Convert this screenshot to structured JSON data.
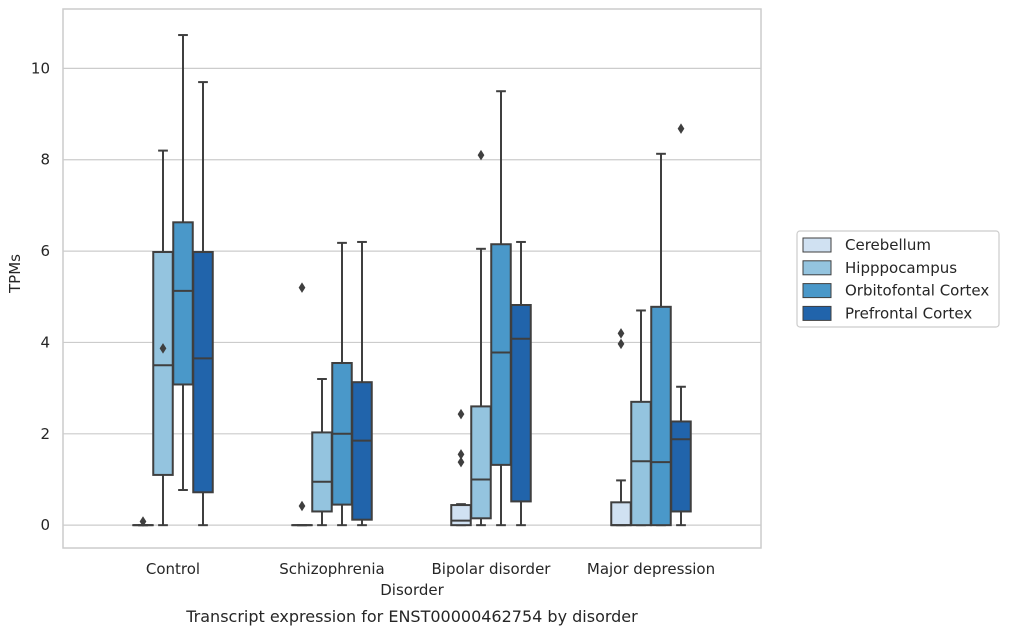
{
  "chart_data": {
    "type": "box",
    "caption": "Transcript expression for ENST00000462754 by disorder",
    "xlabel": "Disorder",
    "ylabel": "TPMs",
    "ylim": [
      -0.5,
      11.3
    ],
    "yticks": [
      0,
      2,
      4,
      6,
      8,
      10
    ],
    "grid": "horizontal",
    "legend_position": "right",
    "categories": [
      "Control",
      "Schizophrenia",
      "Bipolar disorder",
      "Major depression"
    ],
    "series": [
      {
        "name": "Cerebellum",
        "color": "#d0e1f2",
        "boxes": [
          {
            "whislo": 0,
            "q1": 0,
            "med": 0,
            "q3": 0,
            "whishi": 0,
            "fliers": [
              0.08
            ]
          },
          {
            "whislo": 0,
            "q1": 0,
            "med": 0,
            "q3": 0,
            "whishi": 0,
            "fliers": [
              0.42,
              5.2
            ]
          },
          {
            "whislo": 0,
            "q1": 0,
            "med": 0.1,
            "q3": 0.44,
            "whishi": 0.46,
            "fliers": [
              1.38,
              1.55,
              2.43
            ]
          },
          {
            "whislo": 0,
            "q1": 0,
            "med": 0,
            "q3": 0.5,
            "whishi": 0.98,
            "fliers": [
              3.97,
              4.2
            ]
          }
        ]
      },
      {
        "name": "Hipppocampus",
        "color": "#94c4df",
        "boxes": [
          {
            "whislo": 0,
            "q1": 1.1,
            "med": 3.5,
            "q3": 5.98,
            "whishi": 8.2,
            "fliers": [
              3.87
            ]
          },
          {
            "whislo": 0,
            "q1": 0.3,
            "med": 0.95,
            "q3": 2.03,
            "whishi": 3.2,
            "fliers": []
          },
          {
            "whislo": 0,
            "q1": 0.15,
            "med": 1.0,
            "q3": 2.6,
            "whishi": 6.05,
            "fliers": [
              8.1
            ]
          },
          {
            "whislo": 0,
            "q1": 0,
            "med": 1.4,
            "q3": 2.7,
            "whishi": 4.7,
            "fliers": []
          }
        ]
      },
      {
        "name": "Orbitofontal Cortex",
        "color": "#4a98c9",
        "boxes": [
          {
            "whislo": 0.77,
            "q1": 3.08,
            "med": 5.13,
            "q3": 6.63,
            "whishi": 10.73,
            "fliers": []
          },
          {
            "whislo": 0,
            "q1": 0.45,
            "med": 2.0,
            "q3": 3.55,
            "whishi": 6.18,
            "fliers": []
          },
          {
            "whislo": 0,
            "q1": 1.32,
            "med": 3.78,
            "q3": 6.15,
            "whishi": 9.5,
            "fliers": []
          },
          {
            "whislo": 0,
            "q1": 0,
            "med": 1.38,
            "q3": 4.78,
            "whishi": 8.13,
            "fliers": []
          }
        ]
      },
      {
        "name": "Prefrontal Cortex",
        "color": "#2164ab",
        "boxes": [
          {
            "whislo": 0,
            "q1": 0.72,
            "med": 3.65,
            "q3": 5.98,
            "whishi": 9.7,
            "fliers": []
          },
          {
            "whislo": 0,
            "q1": 0.12,
            "med": 1.85,
            "q3": 3.13,
            "whishi": 6.2,
            "fliers": []
          },
          {
            "whislo": 0,
            "q1": 0.52,
            "med": 4.08,
            "q3": 4.82,
            "whishi": 6.2,
            "fliers": []
          },
          {
            "whislo": 0,
            "q1": 0.3,
            "med": 1.88,
            "q3": 2.27,
            "whishi": 3.03,
            "fliers": [
              8.68
            ]
          }
        ]
      }
    ]
  }
}
